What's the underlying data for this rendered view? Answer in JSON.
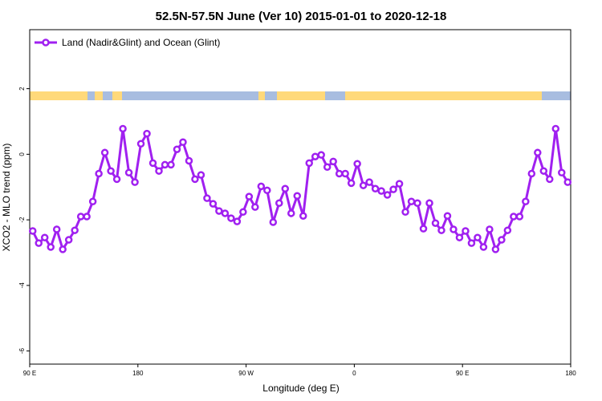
{
  "chart_data": {
    "type": "line",
    "title": "52.5N-57.5N June (Ver 10)   2015-01-01 to 2020-12-18",
    "x_label": "Longitude (deg E)",
    "y_label": "XCO2 - MLO trend (ppm)",
    "x": [
      92.5,
      97.5,
      102.5,
      107.5,
      112.5,
      117.5,
      122.5,
      127.5,
      132.5,
      137.5,
      142.5,
      147.5,
      152.5,
      157.5,
      162.5,
      167.5,
      172.5,
      177.5,
      182.5,
      187.5,
      192.5,
      197.5,
      202.5,
      207.5,
      212.5,
      217.5,
      222.5,
      227.5,
      232.5,
      237.5,
      242.5,
      247.5,
      252.5,
      257.5,
      262.5,
      267.5,
      272.5,
      277.5,
      282.5,
      287.5,
      292.5,
      297.5,
      302.5,
      307.5,
      312.5,
      317.5,
      322.5,
      327.5,
      332.5,
      337.5,
      342.5,
      347.5,
      352.5,
      357.5,
      362.5,
      367.5,
      372.5,
      377.5,
      382.5,
      387.5,
      392.5,
      397.5,
      402.5,
      407.5,
      412.5,
      417.5,
      422.5,
      427.5,
      432.5,
      437.5,
      442.5,
      447.5,
      452.5,
      457.5,
      462.5,
      467.5,
      472.5,
      477.5,
      482.5,
      487.5,
      492.5,
      497.5,
      502.5,
      507.5,
      512.5,
      517.5,
      522.5,
      527.5,
      532.5,
      537.5
    ],
    "series": [
      {
        "name": "Land (Nadir&Glint) and Ocean (Glint)",
        "color": "#a020f0",
        "values": [
          -2.34,
          -2.71,
          -2.54,
          -2.83,
          -2.29,
          -2.9,
          -2.61,
          -2.32,
          -1.9,
          -1.9,
          -1.44,
          -0.59,
          0.05,
          -0.51,
          -0.76,
          0.78,
          -0.56,
          -0.85,
          0.32,
          0.63,
          -0.27,
          -0.51,
          -0.32,
          -0.32,
          0.15,
          0.37,
          -0.2,
          -0.76,
          -0.63,
          -1.34,
          -1.51,
          -1.73,
          -1.8,
          -1.95,
          -2.05,
          -1.76,
          -1.29,
          -1.61,
          -0.98,
          -1.1,
          -2.07,
          -1.49,
          -1.05,
          -1.8,
          -1.27,
          -1.88,
          -0.27,
          -0.07,
          -0.02,
          -0.39,
          -0.22,
          -0.59,
          -0.59,
          -0.88,
          -0.29,
          -0.95,
          -0.85,
          -1.05,
          -1.12,
          -1.24,
          -1.07,
          -0.9,
          -1.76,
          -1.44,
          -1.49,
          -2.27,
          -1.49,
          -2.1,
          -2.32,
          -1.88,
          -2.29,
          -2.54,
          -2.34,
          -2.71,
          -2.54,
          -2.83,
          -2.29,
          -2.9,
          -2.61,
          -2.32,
          -1.9,
          -1.9,
          -1.44,
          -0.59,
          0.05,
          -0.51,
          -0.76,
          0.78,
          -0.56,
          -0.85
        ]
      }
    ],
    "xlim": [
      90,
      540
    ],
    "xticks": [
      {
        "value": 90,
        "label": "90 E"
      },
      180,
      {
        "value": 270,
        "label": "90 W"
      },
      {
        "value": 360,
        "label": "0"
      },
      {
        "value": 450,
        "label": "90 E"
      },
      {
        "value": 540,
        "label": "180"
      }
    ],
    "ylim": [
      -6.4,
      3.8
    ],
    "yticks": [
      -6,
      -4,
      -2,
      0,
      2
    ],
    "legend": "top-left"
  }
}
